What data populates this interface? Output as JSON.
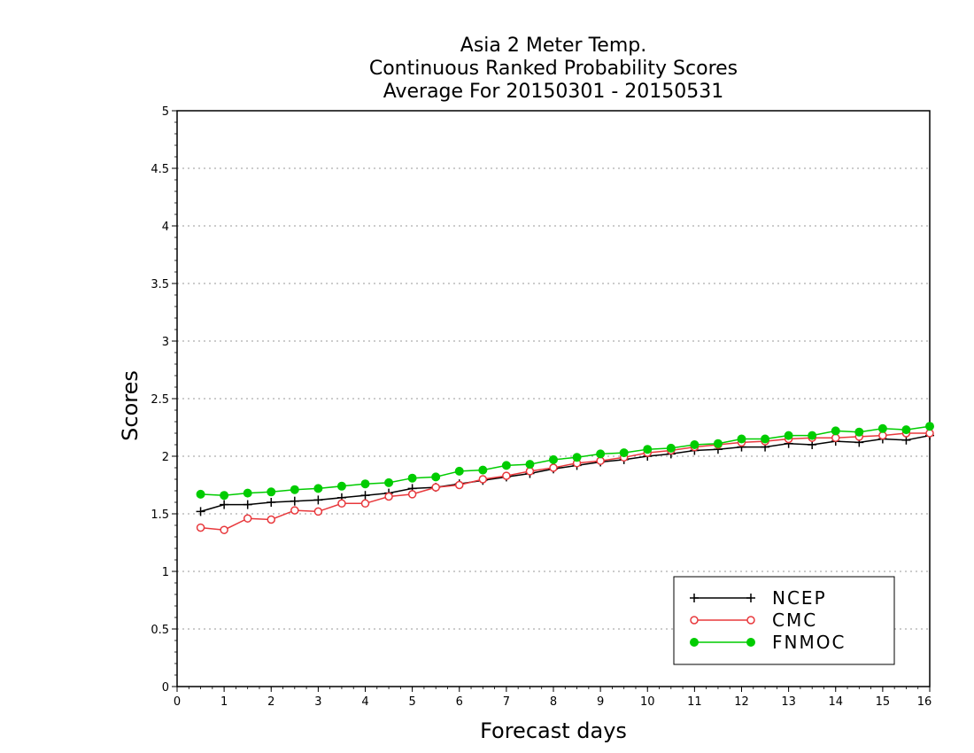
{
  "chart_data": {
    "type": "line",
    "title": [
      "Asia 2 Meter Temp.",
      "Continuous Ranked Probability Scores",
      "Average For 20150301 - 20150531"
    ],
    "xlabel": "Forecast days",
    "ylabel": "Scores",
    "xlim": [
      0,
      16
    ],
    "ylim": [
      0,
      5
    ],
    "xticks": [
      "0",
      "1",
      "2",
      "3",
      "4",
      "5",
      "6",
      "7",
      "8",
      "9",
      "10",
      "11",
      "12",
      "13",
      "14",
      "15",
      "16"
    ],
    "yticks": [
      "0",
      "0.5",
      "1",
      "1.5",
      "2",
      "2.5",
      "3",
      "3.5",
      "4",
      "4.5",
      "5"
    ],
    "grid": "horizontal dotted",
    "legend_position": "bottom-right",
    "x": [
      0.5,
      1,
      1.5,
      2,
      2.5,
      3,
      3.5,
      4,
      4.5,
      5,
      5.5,
      6,
      6.5,
      7,
      7.5,
      8,
      8.5,
      9,
      9.5,
      10,
      10.5,
      11,
      11.5,
      12,
      12.5,
      13,
      13.5,
      14,
      14.5,
      15,
      15.5,
      16
    ],
    "series": [
      {
        "name": "NCEP",
        "color": "#000000",
        "marker": "plus",
        "values": [
          1.52,
          1.58,
          1.58,
          1.6,
          1.61,
          1.62,
          1.64,
          1.66,
          1.68,
          1.72,
          1.73,
          1.76,
          1.79,
          1.82,
          1.85,
          1.89,
          1.92,
          1.95,
          1.97,
          2.0,
          2.02,
          2.05,
          2.06,
          2.08,
          2.08,
          2.11,
          2.1,
          2.13,
          2.12,
          2.15,
          2.14,
          2.18
        ]
      },
      {
        "name": "CMC",
        "color": "#e8383c",
        "marker": "open-circle",
        "values": [
          1.38,
          1.36,
          1.46,
          1.45,
          1.53,
          1.52,
          1.59,
          1.59,
          1.65,
          1.67,
          1.73,
          1.75,
          1.8,
          1.83,
          1.87,
          1.9,
          1.94,
          1.96,
          1.99,
          2.03,
          2.05,
          2.08,
          2.1,
          2.12,
          2.13,
          2.15,
          2.16,
          2.16,
          2.17,
          2.18,
          2.2,
          2.2
        ]
      },
      {
        "name": "FNMOC",
        "color": "#00cc00",
        "marker": "filled-circle",
        "values": [
          1.67,
          1.66,
          1.68,
          1.69,
          1.71,
          1.72,
          1.74,
          1.76,
          1.77,
          1.81,
          1.82,
          1.87,
          1.88,
          1.92,
          1.93,
          1.97,
          1.99,
          2.02,
          2.03,
          2.06,
          2.07,
          2.1,
          2.11,
          2.15,
          2.15,
          2.18,
          2.18,
          2.22,
          2.21,
          2.24,
          2.23,
          2.26
        ]
      }
    ]
  }
}
